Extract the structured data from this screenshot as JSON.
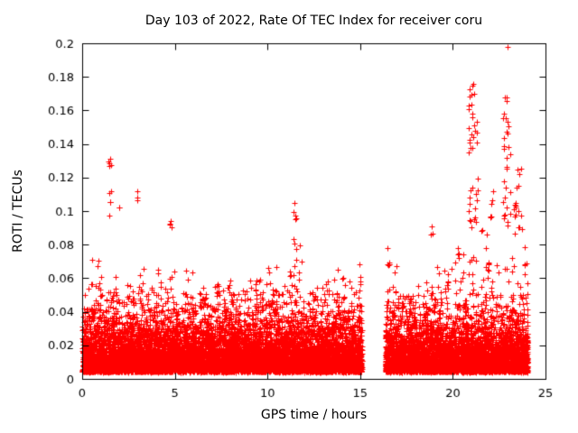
{
  "chart_data": {
    "type": "scatter",
    "title": "Day 103 of 2022, Rate Of TEC Index for receiver coru",
    "xlabel": "GPS time / hours",
    "ylabel": "ROTI / TECUs",
    "xlim": [
      0,
      25
    ],
    "ylim": [
      0,
      0.2
    ],
    "x_ticks": [
      "0",
      "5",
      "10",
      "15",
      "20",
      "25"
    ],
    "y_ticks": [
      "0",
      "0.02",
      "0.04",
      "0.06",
      "0.08",
      "0.1",
      "0.12",
      "0.14",
      "0.16",
      "0.18",
      "0.2"
    ],
    "grid": false,
    "legend": "none",
    "marker": "plus",
    "marker_color": "#ff0000",
    "axis_color": "#000000",
    "background": "#ffffff",
    "data_gap_hours": [
      15.1,
      16.35
    ],
    "band": {
      "y_base": 0.004,
      "exp_mean": 0.012,
      "points_per_hour": 620,
      "bins": [
        [
          0,
          1,
          0.075
        ],
        [
          1,
          2,
          0.065
        ],
        [
          2,
          3,
          0.062
        ],
        [
          3,
          4,
          0.07
        ],
        [
          4,
          5,
          0.07
        ],
        [
          5,
          6,
          0.065
        ],
        [
          6,
          7,
          0.055
        ],
        [
          7,
          8,
          0.06
        ],
        [
          8,
          9,
          0.055
        ],
        [
          9,
          10,
          0.065
        ],
        [
          10,
          11,
          0.07
        ],
        [
          11,
          12,
          0.08
        ],
        [
          12,
          13,
          0.055
        ],
        [
          13,
          14,
          0.065
        ],
        [
          14,
          15.1,
          0.07
        ],
        [
          16.35,
          17,
          0.08
        ],
        [
          17,
          18,
          0.05
        ],
        [
          18,
          19,
          0.06
        ],
        [
          19,
          20,
          0.068
        ],
        [
          20,
          21,
          0.08
        ],
        [
          21,
          22,
          0.085
        ],
        [
          22,
          23,
          0.085
        ],
        [
          23,
          24.05,
          0.09
        ]
      ]
    },
    "spike_clusters": [
      [
        1.42,
        1.6,
        0.095,
        0.132,
        9
      ],
      [
        1.95,
        2.05,
        0.1,
        0.108,
        2
      ],
      [
        2.9,
        3.0,
        0.105,
        0.113,
        2
      ],
      [
        4.75,
        4.85,
        0.088,
        0.095,
        3
      ],
      [
        11.35,
        11.6,
        0.08,
        0.106,
        6
      ],
      [
        16.45,
        16.6,
        0.068,
        0.08,
        4
      ],
      [
        18.8,
        18.9,
        0.086,
        0.092,
        2
      ],
      [
        20.25,
        20.4,
        0.07,
        0.082,
        4
      ],
      [
        20.85,
        21.35,
        0.07,
        0.176,
        42
      ],
      [
        21.55,
        21.95,
        0.06,
        0.092,
        10
      ],
      [
        22.0,
        22.2,
        0.095,
        0.125,
        6
      ],
      [
        22.7,
        23.1,
        0.09,
        0.168,
        30
      ],
      [
        23.25,
        23.7,
        0.085,
        0.126,
        16
      ],
      [
        23.8,
        24.0,
        0.06,
        0.08,
        5
      ]
    ],
    "outliers": [
      [
        22.95,
        0.198
      ],
      [
        21.08,
        0.176
      ],
      [
        21.15,
        0.17
      ],
      [
        1.5,
        0.131
      ],
      [
        1.45,
        0.127
      ],
      [
        11.45,
        0.105
      ],
      [
        2.95,
        0.112
      ],
      [
        4.8,
        0.094
      ],
      [
        18.85,
        0.091
      ],
      [
        23.5,
        0.125
      ]
    ]
  }
}
